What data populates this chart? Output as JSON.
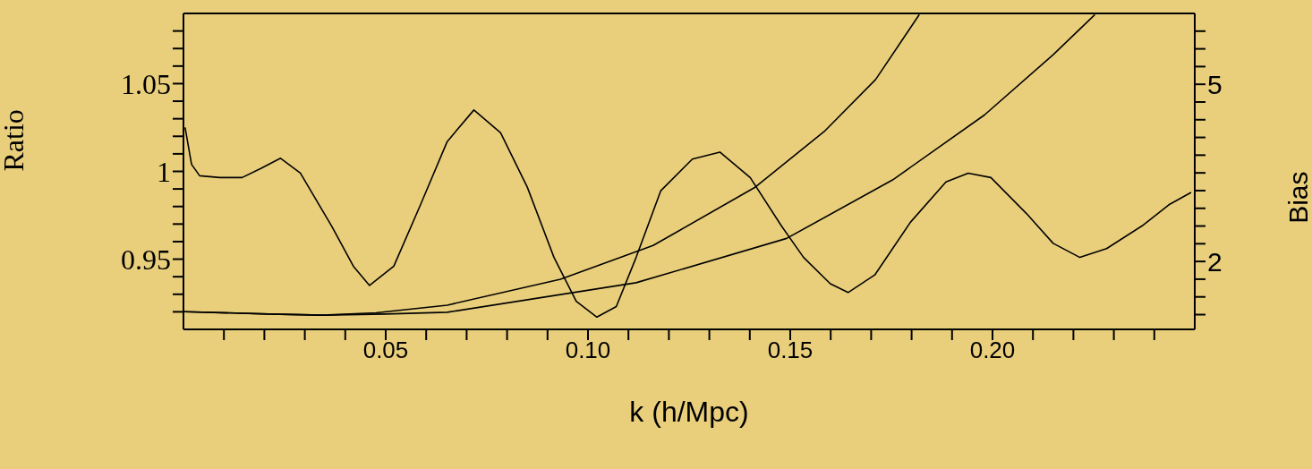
{
  "chart_data": {
    "type": "line",
    "xlabel": "k  (h/Mpc)",
    "ylabel": "Ratio",
    "y2label": "Bias",
    "xlim": [
      0,
      0.25
    ],
    "xticks": [
      {
        "value": 0.01,
        "label": null
      },
      {
        "value": 0.02,
        "label": null
      },
      {
        "value": 0.03,
        "label": null
      },
      {
        "value": 0.04,
        "label": null
      },
      {
        "value": 0.05,
        "label": "0.05"
      },
      {
        "value": 0.06,
        "label": null
      },
      {
        "value": 0.07,
        "label": null
      },
      {
        "value": 0.08,
        "label": null
      },
      {
        "value": 0.09,
        "label": null
      },
      {
        "value": 0.1,
        "label": "0.10"
      },
      {
        "value": 0.11,
        "label": null
      },
      {
        "value": 0.12,
        "label": null
      },
      {
        "value": 0.13,
        "label": null
      },
      {
        "value": 0.14,
        "label": null
      },
      {
        "value": 0.15,
        "label": "0.15"
      },
      {
        "value": 0.16,
        "label": null
      },
      {
        "value": 0.17,
        "label": null
      },
      {
        "value": 0.18,
        "label": null
      },
      {
        "value": 0.19,
        "label": null
      },
      {
        "value": 0.2,
        "label": "0.20"
      },
      {
        "value": 0.21,
        "label": null
      },
      {
        "value": 0.22,
        "label": null
      },
      {
        "value": 0.23,
        "label": null
      },
      {
        "value": 0.24,
        "label": null
      }
    ],
    "ylim": [
      0.91,
      1.09
    ],
    "yticks": [
      {
        "value": 0.92,
        "label": null
      },
      {
        "value": 0.93,
        "label": null
      },
      {
        "value": 0.94,
        "label": null
      },
      {
        "value": 0.95,
        "label": "0.95"
      },
      {
        "value": 0.96,
        "label": null
      },
      {
        "value": 0.97,
        "label": null
      },
      {
        "value": 0.98,
        "label": null
      },
      {
        "value": 0.99,
        "label": null
      },
      1,
      {
        "value": 1.01,
        "label": null
      },
      {
        "value": 1.02,
        "label": null
      },
      {
        "value": 1.03,
        "label": null
      },
      {
        "value": 1.04,
        "label": null
      },
      {
        "value": 1.05,
        "label": "1.05"
      },
      {
        "value": 1.06,
        "label": null
      },
      {
        "value": 1.07,
        "label": null
      },
      {
        "value": 1.08,
        "label": null
      }
    ],
    "y2lim": [
      0.85,
      6.2
    ],
    "y2ticks": [
      {
        "value": 1.1,
        "label": null
      },
      {
        "value": 1.4,
        "label": null
      },
      {
        "value": 1.7,
        "label": null
      },
      2,
      {
        "value": 2.3,
        "label": null
      },
      {
        "value": 2.6,
        "label": null
      },
      {
        "value": 2.9,
        "label": null
      },
      {
        "value": 3.2,
        "label": null
      },
      {
        "value": 3.5,
        "label": null
      },
      {
        "value": 3.8,
        "label": null
      },
      {
        "value": 4.1,
        "label": null
      },
      {
        "value": 4.4,
        "label": null
      },
      {
        "value": 4.7,
        "label": null
      },
      5,
      {
        "value": 5.3,
        "label": null
      },
      {
        "value": 5.6,
        "label": null
      },
      {
        "value": 5.9,
        "label": null
      }
    ],
    "marker": "none",
    "line_style": "solid",
    "series": [
      {
        "color": "#000000",
        "x": [
          0.0004,
          0.002,
          0.004,
          0.009,
          0.0145,
          0.019,
          0.024,
          0.0289,
          0.0366,
          0.042,
          0.046,
          0.052,
          0.0586,
          0.0652,
          0.0718,
          0.0784,
          0.085,
          0.0916,
          0.0971,
          0.1022,
          0.107,
          0.1119,
          0.118,
          0.1258,
          0.1326,
          0.1401,
          0.1478,
          0.1533,
          0.1599,
          0.1643,
          0.1709,
          0.1797,
          0.1885,
          0.194,
          0.1996,
          0.2084,
          0.215,
          0.2216,
          0.2282,
          0.237,
          0.2436,
          0.2491
        ],
        "values": [
          1.025,
          1.004,
          0.9975,
          0.9965,
          0.9965,
          1.0015,
          1.0075,
          0.999,
          0.969,
          0.946,
          0.935,
          0.946,
          0.981,
          1.017,
          1.035,
          1.022,
          0.991,
          0.951,
          0.926,
          0.917,
          0.923,
          0.951,
          0.989,
          1.007,
          1.011,
          0.9965,
          0.969,
          0.951,
          0.936,
          0.931,
          0.941,
          0.971,
          0.994,
          0.999,
          0.9965,
          0.976,
          0.959,
          0.951,
          0.956,
          0.969,
          0.981,
          0.988
        ]
      },
      {
        "color": "#000000",
        "axis": "y2",
        "x": [
          0.0002,
          0.0211,
          0.0344,
          0.0476,
          0.0652,
          0.0932,
          0.1161,
          0.1414,
          0.1584,
          0.1711,
          0.1819
        ],
        "values": [
          1.15,
          1.11,
          1.09,
          1.13,
          1.26,
          1.7,
          2.27,
          3.26,
          4.2,
          5.08,
          6.18
        ]
      },
      {
        "color": "#000000",
        "axis": "y2",
        "x": [
          0.0002,
          0.0211,
          0.0344,
          0.0498,
          0.0652,
          0.1119,
          0.1491,
          0.1753,
          0.198,
          0.215,
          0.2253
        ],
        "values": [
          1.15,
          1.11,
          1.09,
          1.11,
          1.14,
          1.64,
          2.39,
          3.38,
          4.48,
          5.5,
          6.18
        ]
      }
    ]
  }
}
